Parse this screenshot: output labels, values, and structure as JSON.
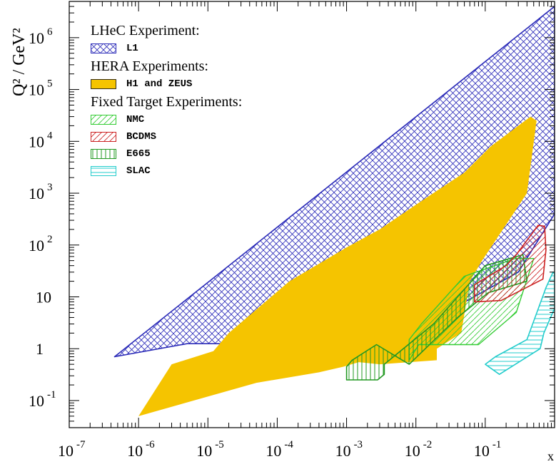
{
  "chart_data": {
    "type": "area",
    "xlabel": "x",
    "ylabel": "Q² / GeV²",
    "xscale": "log",
    "yscale": "log",
    "xlim": [
      1e-07,
      1
    ],
    "ylim": [
      0.03,
      5000000
    ],
    "x_ticks": [
      "10^-7",
      "10^-6",
      "10^-5",
      "10^-4",
      "10^-3",
      "10^-2",
      "10^-1"
    ],
    "y_ticks": [
      "10^-1",
      "1",
      "10",
      "10^2",
      "10^3",
      "10^4",
      "10^5",
      "10^6"
    ],
    "legend": {
      "headers": [
        "LHeC Experiment:",
        "HERA Experiments:",
        "Fixed Target Experiments:"
      ],
      "entries": [
        {
          "group": 0,
          "label": "L1",
          "color": "#2a2ab8",
          "fill": "crosshatch"
        },
        {
          "group": 1,
          "label": "H1 and ZEUS",
          "color": "#f5c400",
          "fill": "solid"
        },
        {
          "group": 2,
          "label": "NMC",
          "color": "#33cc33",
          "fill": "diagonal"
        },
        {
          "group": 2,
          "label": "BCDMS",
          "color": "#cc2222",
          "fill": "diagonal"
        },
        {
          "group": 2,
          "label": "E665",
          "color": "#229922",
          "fill": "vertical"
        },
        {
          "group": 2,
          "label": "SLAC",
          "color": "#22cccc",
          "fill": "horizontal"
        }
      ]
    },
    "series": [
      {
        "name": "L1",
        "points": [
          [
            4.5e-07,
            0.7
          ],
          [
            5e-06,
            1.25
          ],
          [
            3e-05,
            1.25
          ],
          [
            0.0003,
            1.22
          ],
          [
            0.004,
            1.2
          ],
          [
            0.3,
            30
          ],
          [
            1,
            400
          ],
          [
            1,
            4000000
          ]
        ]
      },
      {
        "name": "H1 and ZEUS",
        "points": [
          [
            1e-06,
            0.05
          ],
          [
            5e-05,
            0.22
          ],
          [
            0.0004,
            0.35
          ],
          [
            0.0009,
            0.45
          ],
          [
            0.0015,
            0.55
          ],
          [
            0.003,
            0.5
          ],
          [
            0.02,
            0.6
          ],
          [
            0.02,
            1
          ],
          [
            0.045,
            2
          ],
          [
            0.06,
            20
          ],
          [
            0.09,
            50
          ],
          [
            0.4,
            1000
          ],
          [
            0.55,
            25000
          ],
          [
            0.45,
            30000
          ],
          [
            0.12,
            8000
          ],
          [
            0.05,
            2500
          ],
          [
            0.01,
            600
          ],
          [
            0.003,
            200
          ],
          [
            0.001,
            90
          ],
          [
            0.00015,
            20
          ],
          [
            2e-05,
            2
          ],
          [
            1.2e-05,
            0.9
          ],
          [
            3e-06,
            0.5
          ]
        ]
      },
      {
        "name": "NMC",
        "points": [
          [
            0.008,
            0.6
          ],
          [
            0.011,
            1.2
          ],
          [
            0.08,
            1.2
          ],
          [
            0.28,
            5
          ],
          [
            0.5,
            55
          ],
          [
            0.27,
            55
          ],
          [
            0.05,
            25
          ],
          [
            0.012,
            3
          ],
          [
            0.008,
            1.5
          ]
        ]
      },
      {
        "name": "BCDMS",
        "points": [
          [
            0.07,
            8
          ],
          [
            0.17,
            8.5
          ],
          [
            0.68,
            22
          ],
          [
            0.75,
            80
          ],
          [
            0.72,
            230
          ],
          [
            0.58,
            240
          ],
          [
            0.28,
            65
          ],
          [
            0.2,
            40
          ],
          [
            0.07,
            17
          ]
        ]
      },
      {
        "name": "E665",
        "points": [
          [
            0.001,
            0.25
          ],
          [
            0.0028,
            0.25
          ],
          [
            0.0035,
            0.32
          ],
          [
            0.0035,
            0.5
          ],
          [
            0.018,
            3
          ],
          [
            0.1,
            40
          ],
          [
            0.35,
            65
          ],
          [
            0.4,
            20
          ],
          [
            0.11,
            12
          ],
          [
            0.04,
            4
          ],
          [
            0.008,
            0.5
          ],
          [
            0.0027,
            1.2
          ],
          [
            0.0012,
            0.6
          ],
          [
            0.001,
            0.45
          ]
        ]
      },
      {
        "name": "SLAC",
        "points": [
          [
            0.14,
            0.7
          ],
          [
            0.4,
            1.5
          ],
          [
            0.75,
            15
          ],
          [
            0.95,
            30
          ],
          [
            1,
            28
          ],
          [
            1,
            6
          ],
          [
            0.7,
            2
          ],
          [
            0.62,
            1
          ],
          [
            0.16,
            0.32
          ],
          [
            0.1,
            0.5
          ]
        ]
      }
    ]
  }
}
